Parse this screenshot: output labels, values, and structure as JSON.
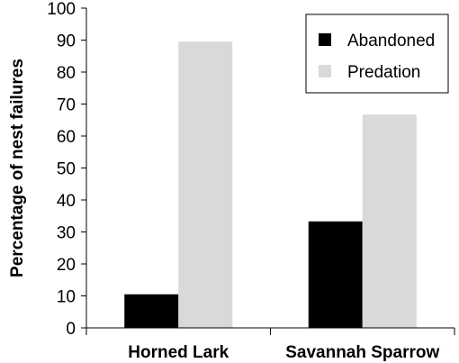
{
  "chart_data": {
    "type": "bar",
    "title": "",
    "xlabel": "",
    "ylabel": "Percentage of nest failures",
    "ylim": [
      0,
      100
    ],
    "yticks": [
      0,
      10,
      20,
      30,
      40,
      50,
      60,
      70,
      80,
      90,
      100
    ],
    "categories": [
      "Horned Lark",
      "Savannah Sparrow"
    ],
    "series": [
      {
        "name": "Abandoned",
        "color": "#000000",
        "values": [
          10.5,
          33.3
        ]
      },
      {
        "name": "Predation",
        "color": "#d9d9d9",
        "values": [
          89.5,
          66.7
        ]
      }
    ],
    "grid": false,
    "legend": "top-right"
  }
}
